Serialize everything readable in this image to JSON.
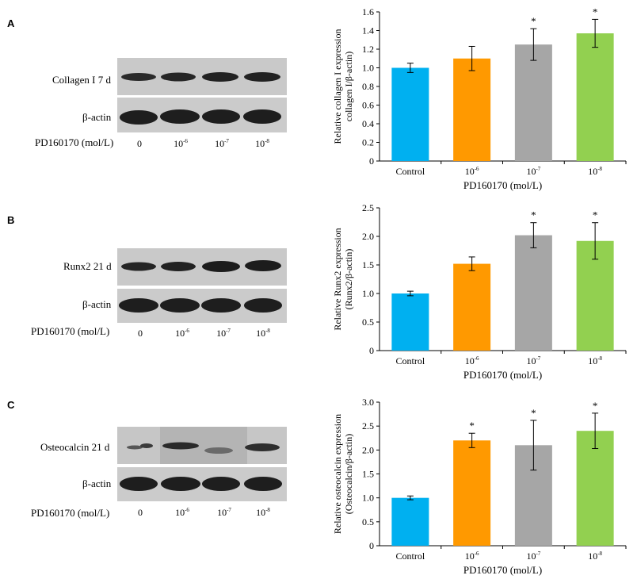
{
  "panels": [
    {
      "letter": "A",
      "blot": {
        "target_label": "Collagen I 7 d",
        "control_label": "β-actin",
        "treatment_label": "PD160170 (mol/L)",
        "lanes": [
          {
            "base": "0",
            "exp": ""
          },
          {
            "base": "10",
            "exp": "-6"
          },
          {
            "base": "10",
            "exp": "-7"
          },
          {
            "base": "10",
            "exp": "-8"
          }
        ]
      }
    },
    {
      "letter": "B",
      "blot": {
        "target_label": "Runx2 21 d",
        "control_label": "β-actin",
        "treatment_label": "PD160170 (mol/L)",
        "lanes": [
          {
            "base": "0",
            "exp": ""
          },
          {
            "base": "10",
            "exp": "-6"
          },
          {
            "base": "10",
            "exp": "-7"
          },
          {
            "base": "10",
            "exp": "-8"
          }
        ]
      }
    },
    {
      "letter": "C",
      "blot": {
        "target_label": "Osteocalcin 21 d",
        "control_label": "β-actin",
        "treatment_label": "PD160170 (mol/L)",
        "lanes": [
          {
            "base": "0",
            "exp": ""
          },
          {
            "base": "10",
            "exp": "-6"
          },
          {
            "base": "10",
            "exp": "-7"
          },
          {
            "base": "10",
            "exp": "-8"
          }
        ]
      }
    }
  ],
  "chart_data": [
    {
      "type": "bar",
      "categories": [
        {
          "base": "Control",
          "exp": ""
        },
        {
          "base": "10",
          "exp": "-6"
        },
        {
          "base": "10",
          "exp": "-7"
        },
        {
          "base": "10",
          "exp": "-8"
        }
      ],
      "values": [
        1.0,
        1.1,
        1.25,
        1.37
      ],
      "errors": [
        0.05,
        0.13,
        0.17,
        0.15
      ],
      "significance": [
        "",
        "",
        "*",
        "*"
      ],
      "colors": [
        "#00b0f0",
        "#ff9900",
        "#a6a6a6",
        "#92d050"
      ],
      "ylabel_lines": [
        "Relative collagen I expression",
        "collagen I/β-actin)"
      ],
      "xlabel": "PD160170 (mol/L)",
      "ylim": [
        0,
        1.6
      ],
      "ytick_step": 0.2,
      "ytick_decimals": 1,
      "grid": false
    },
    {
      "type": "bar",
      "categories": [
        {
          "base": "Control",
          "exp": ""
        },
        {
          "base": "10",
          "exp": "-6"
        },
        {
          "base": "10",
          "exp": "-7"
        },
        {
          "base": "10",
          "exp": "-8"
        }
      ],
      "values": [
        1.0,
        1.52,
        2.02,
        1.92
      ],
      "errors": [
        0.04,
        0.12,
        0.22,
        0.32
      ],
      "significance": [
        "",
        "",
        "*",
        "*"
      ],
      "colors": [
        "#00b0f0",
        "#ff9900",
        "#a6a6a6",
        "#92d050"
      ],
      "ylabel_lines": [
        "Relative Runx2  expression",
        "(Runx2/β-actin)"
      ],
      "xlabel": "PD160170 (mol/L)",
      "ylim": [
        0,
        2.5
      ],
      "ytick_step": 0.5,
      "ytick_decimals": 1,
      "grid": false
    },
    {
      "type": "bar",
      "categories": [
        {
          "base": "Control",
          "exp": ""
        },
        {
          "base": "10",
          "exp": "-6"
        },
        {
          "base": "10",
          "exp": "-7"
        },
        {
          "base": "10",
          "exp": "-8"
        }
      ],
      "values": [
        1.0,
        2.2,
        2.1,
        2.4
      ],
      "errors": [
        0.04,
        0.15,
        0.52,
        0.37
      ],
      "significance": [
        "",
        "*",
        "*",
        "*"
      ],
      "colors": [
        "#00b0f0",
        "#ff9900",
        "#a6a6a6",
        "#92d050"
      ],
      "ylabel_lines": [
        "Relative osteocalcin  expression",
        "(Osteocalcin/β-actin)"
      ],
      "xlabel": "PD160170 (mol/L)",
      "ylim": [
        0,
        3.0
      ],
      "ytick_step": 0.5,
      "ytick_decimals": 1,
      "grid": false
    }
  ]
}
